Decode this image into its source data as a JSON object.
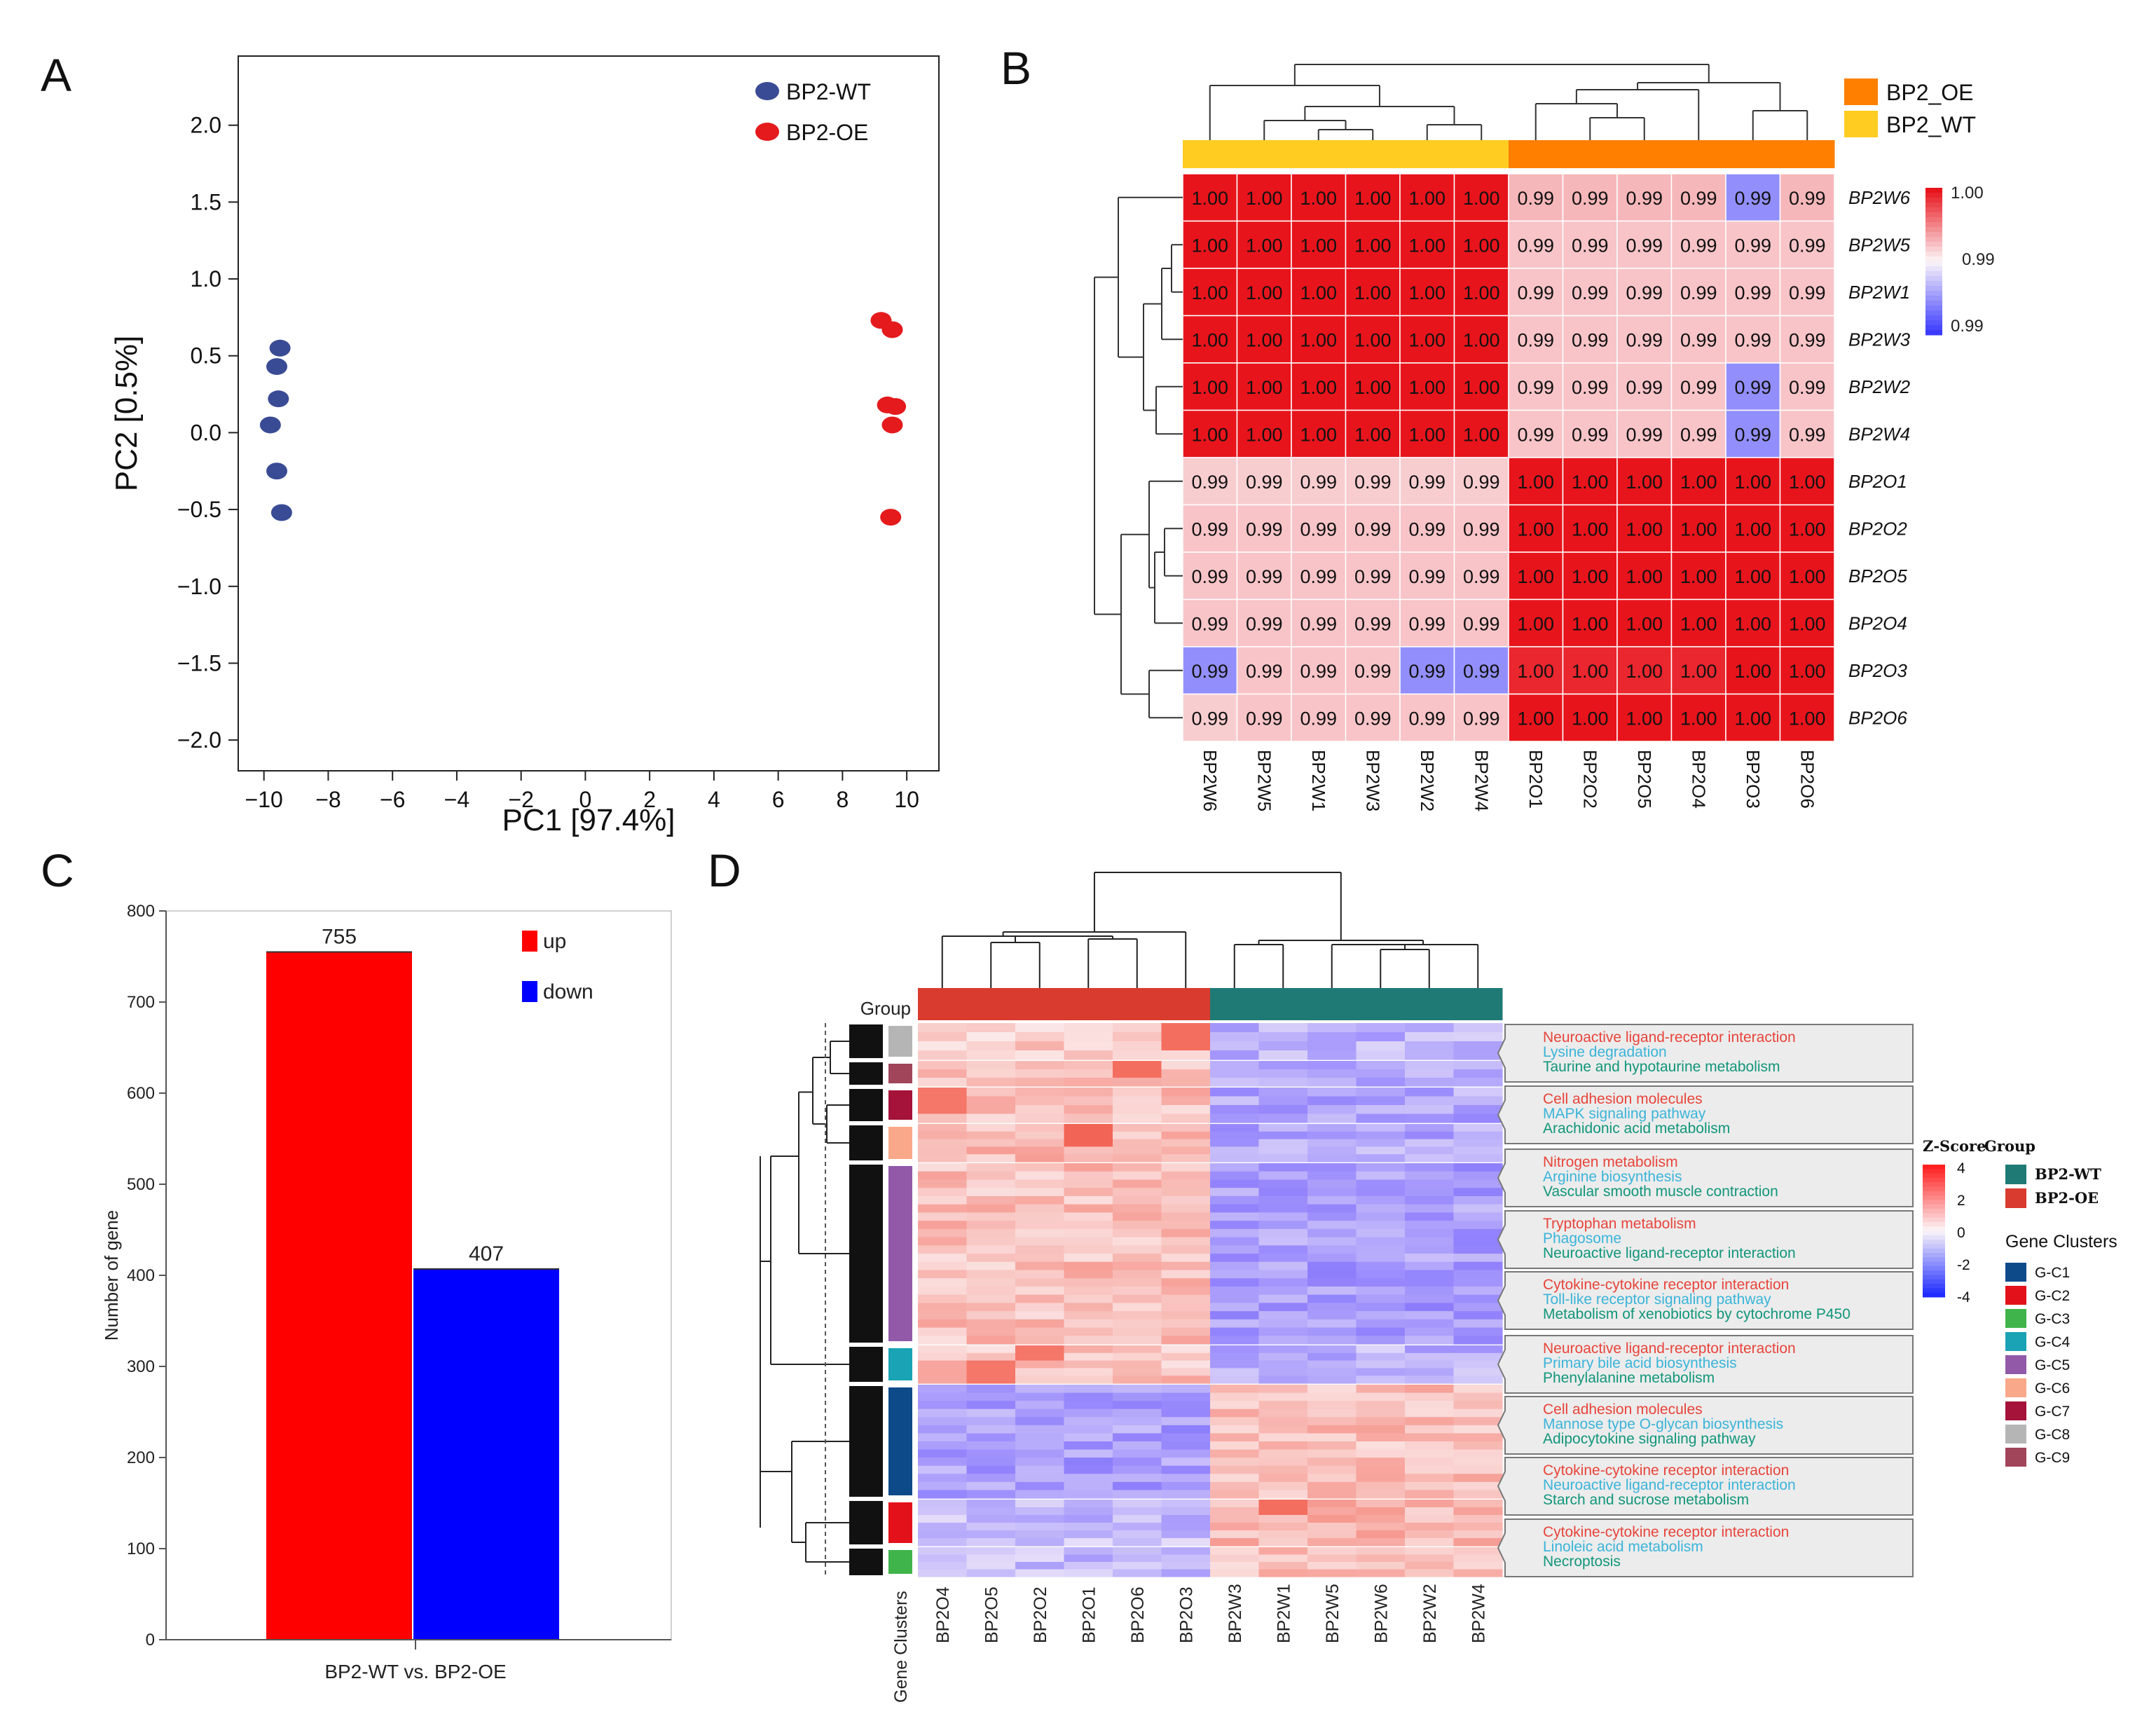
{
  "panels": {
    "A": "A",
    "B": "B",
    "C": "C",
    "D": "D"
  },
  "colors": {
    "wt_point": "#3a4b95",
    "oe_point": "#e41a1c",
    "bar_up": "#ff0000",
    "bar_down": "#0000ff",
    "heat_high": "#e8141c",
    "heat_low": "#3b3bff",
    "oe_bar": "#ff7f00",
    "wt_bar": "#ffcc22",
    "d_oe": "#d93b2f",
    "d_wt": "#1f7a75"
  },
  "chart_data": [
    {
      "panel": "A",
      "type": "scatter",
      "xlabel": "PC1 [97.4%]",
      "ylabel": "PC2 [0.5%]",
      "xlim": [
        -10.8,
        11
      ],
      "ylim": [
        -2.2,
        2.45
      ],
      "xticks": [
        -10,
        -8,
        -6,
        -4,
        -2,
        0,
        2,
        4,
        6,
        8,
        10
      ],
      "yticks": [
        -2.0,
        -1.5,
        -1.0,
        -0.5,
        0.0,
        0.5,
        1.0,
        1.5,
        2.0
      ],
      "legend_position": "top-right",
      "series": [
        {
          "name": "BP2-WT",
          "points": [
            [
              -9.5,
              0.55
            ],
            [
              -9.6,
              0.43
            ],
            [
              -9.55,
              0.22
            ],
            [
              -9.8,
              0.05
            ],
            [
              -9.6,
              -0.25
            ],
            [
              -9.45,
              -0.52
            ]
          ]
        },
        {
          "name": "BP2-OE",
          "points": [
            [
              9.2,
              0.73
            ],
            [
              9.55,
              0.67
            ],
            [
              9.4,
              0.18
            ],
            [
              9.65,
              0.17
            ],
            [
              9.55,
              0.05
            ],
            [
              9.5,
              -0.55
            ]
          ]
        }
      ]
    },
    {
      "panel": "B",
      "type": "heatmap",
      "rows": [
        "BP2W6",
        "BP2W5",
        "BP2W1",
        "BP2W3",
        "BP2W2",
        "BP2W4",
        "BP2O1",
        "BP2O2",
        "BP2O5",
        "BP2O4",
        "BP2O3",
        "BP2O6"
      ],
      "columns": [
        "BP2W6",
        "BP2W5",
        "BP2W1",
        "BP2W3",
        "BP2W2",
        "BP2W4",
        "BP2O1",
        "BP2O2",
        "BP2O5",
        "BP2O4",
        "BP2O3",
        "BP2O6"
      ],
      "column_groups": [
        "BP2_WT",
        "BP2_WT",
        "BP2_WT",
        "BP2_WT",
        "BP2_WT",
        "BP2_WT",
        "BP2_OE",
        "BP2_OE",
        "BP2_OE",
        "BP2_OE",
        "BP2_OE",
        "BP2_OE"
      ],
      "values": [
        [
          "1.00",
          "1.00",
          "1.00",
          "1.00",
          "1.00",
          "1.00",
          "0.99",
          "0.99",
          "0.99",
          "0.99",
          "0.99",
          "0.99"
        ],
        [
          "1.00",
          "1.00",
          "1.00",
          "1.00",
          "1.00",
          "1.00",
          "0.99",
          "0.99",
          "0.99",
          "0.99",
          "0.99",
          "0.99"
        ],
        [
          "1.00",
          "1.00",
          "1.00",
          "1.00",
          "1.00",
          "1.00",
          "0.99",
          "0.99",
          "0.99",
          "0.99",
          "0.99",
          "0.99"
        ],
        [
          "1.00",
          "1.00",
          "1.00",
          "1.00",
          "1.00",
          "1.00",
          "0.99",
          "0.99",
          "0.99",
          "0.99",
          "0.99",
          "0.99"
        ],
        [
          "1.00",
          "1.00",
          "1.00",
          "1.00",
          "1.00",
          "1.00",
          "0.99",
          "0.99",
          "0.99",
          "0.99",
          "0.99",
          "0.99"
        ],
        [
          "1.00",
          "1.00",
          "1.00",
          "1.00",
          "1.00",
          "1.00",
          "0.99",
          "0.99",
          "0.99",
          "0.99",
          "0.99",
          "0.99"
        ],
        [
          "0.99",
          "0.99",
          "0.99",
          "0.99",
          "0.99",
          "0.99",
          "1.00",
          "1.00",
          "1.00",
          "1.00",
          "1.00",
          "1.00"
        ],
        [
          "0.99",
          "0.99",
          "0.99",
          "0.99",
          "0.99",
          "0.99",
          "1.00",
          "1.00",
          "1.00",
          "1.00",
          "1.00",
          "1.00"
        ],
        [
          "0.99",
          "0.99",
          "0.99",
          "0.99",
          "0.99",
          "0.99",
          "1.00",
          "1.00",
          "1.00",
          "1.00",
          "1.00",
          "1.00"
        ],
        [
          "0.99",
          "0.99",
          "0.99",
          "0.99",
          "0.99",
          "0.99",
          "1.00",
          "1.00",
          "1.00",
          "1.00",
          "1.00",
          "1.00"
        ],
        [
          "0.99",
          "0.99",
          "0.99",
          "0.99",
          "0.99",
          "0.99",
          "1.00",
          "1.00",
          "1.00",
          "1.00",
          "1.00",
          "1.00"
        ],
        [
          "0.99",
          "0.99",
          "0.99",
          "0.99",
          "0.99",
          "0.99",
          "1.00",
          "1.00",
          "1.00",
          "1.00",
          "1.00",
          "1.00"
        ]
      ],
      "intensity": [
        [
          1,
          1,
          1,
          1,
          1,
          1,
          0.28,
          0.28,
          0.28,
          0.28,
          -0.55,
          0.28
        ],
        [
          1,
          1,
          1,
          1,
          1,
          1,
          0.22,
          0.22,
          0.22,
          0.22,
          0.22,
          0.22
        ],
        [
          1,
          1,
          1,
          1,
          1,
          1,
          0.22,
          0.22,
          0.22,
          0.22,
          0.22,
          0.22
        ],
        [
          1,
          1,
          1,
          1,
          1,
          1,
          0.22,
          0.22,
          0.22,
          0.22,
          0.22,
          0.22
        ],
        [
          1,
          1,
          1,
          1,
          1,
          1,
          0.22,
          0.22,
          0.22,
          0.22,
          -0.55,
          0.22
        ],
        [
          1,
          1,
          1,
          1,
          1,
          1,
          0.22,
          0.22,
          0.22,
          0.22,
          -0.55,
          0.22
        ],
        [
          0.18,
          0.18,
          0.18,
          0.18,
          0.18,
          0.18,
          1,
          1,
          1,
          1,
          1,
          1
        ],
        [
          0.22,
          0.22,
          0.22,
          0.22,
          0.22,
          0.22,
          1,
          1,
          1,
          1,
          1,
          1
        ],
        [
          0.22,
          0.22,
          0.22,
          0.22,
          0.22,
          0.22,
          1,
          1,
          1,
          1,
          1,
          1
        ],
        [
          0.22,
          0.22,
          0.22,
          0.22,
          0.22,
          0.22,
          1,
          1,
          1,
          1,
          1,
          1
        ],
        [
          -0.55,
          0.22,
          0.22,
          0.22,
          -0.55,
          -0.55,
          0.92,
          0.92,
          0.92,
          0.92,
          1,
          1
        ],
        [
          0.18,
          0.22,
          0.22,
          0.22,
          0.22,
          0.22,
          1,
          1,
          1,
          1,
          1,
          1
        ]
      ],
      "colorbar_ticks": [
        "1.00",
        "0.99",
        "0.99"
      ],
      "legend": [
        "BP2_OE",
        "BP2_WT"
      ]
    },
    {
      "panel": "C",
      "type": "bar",
      "categories": [
        "BP2-WT vs. BP2-OE"
      ],
      "series": [
        {
          "name": "up",
          "values": [
            755
          ]
        },
        {
          "name": "down",
          "values": [
            407
          ]
        }
      ],
      "ylabel": "Number of gene",
      "ylim": [
        0,
        800
      ],
      "yticks": [
        0,
        100,
        200,
        300,
        400,
        500,
        600,
        700,
        800
      ],
      "legend_position": "top-right"
    },
    {
      "panel": "D",
      "type": "heatmap",
      "group_label": "Group",
      "columns": [
        "BP2O4",
        "BP2O5",
        "BP2O2",
        "BP2O1",
        "BP2O6",
        "BP2O3",
        "BP2W3",
        "BP2W1",
        "BP2W5",
        "BP2W6",
        "BP2W2",
        "BP2W4"
      ],
      "row_axis_label": "Gene Clusters",
      "colorbar_title": "Z-Score",
      "colorbar_ticks": [
        "4",
        "2",
        "0",
        "-2",
        "-4"
      ],
      "group_legend_title": "Group",
      "group_legend": [
        "BP2-WT",
        "BP2-OE"
      ],
      "cluster_legend_title": "Gene Clusters",
      "clusters": [
        "G-C1",
        "G-C2",
        "G-C3",
        "G-C4",
        "G-C5",
        "G-C6",
        "G-C7",
        "G-C8",
        "G-C9"
      ],
      "cluster_colors": {
        "G-C1": "#0d4a8a",
        "G-C2": "#e3121a",
        "G-C3": "#3fb44a",
        "G-C4": "#1aa3b5",
        "G-C5": "#9159a8",
        "G-C6": "#f9a98a",
        "G-C7": "#a5123a",
        "G-C8": "#b5b5b5",
        "G-C9": "#a0455a"
      },
      "cluster_order": [
        "G-C8",
        "G-C9",
        "G-C7",
        "G-C6",
        "G-C5",
        "G-C4",
        "G-C1",
        "G-C2",
        "G-C3"
      ],
      "pathway_boxes": [
        [
          "Neuroactive ligand-receptor interaction",
          "Lysine degradation",
          "Taurine and hypotaurine metabolism"
        ],
        [
          "Cell adhesion molecules",
          "MAPK signaling pathway",
          "Arachidonic acid metabolism"
        ],
        [
          "Nitrogen metabolism",
          "Arginine biosynthesis",
          "Vascular smooth muscle contraction"
        ],
        [
          "Tryptophan metabolism",
          "Phagosome",
          "Neuroactive ligand-receptor interaction"
        ],
        [
          "Cytokine-cytokine receptor interaction",
          "Toll-like receptor signaling pathway",
          "Metabolism of xenobiotics by cytochrome P450"
        ],
        [
          "Neuroactive ligand-receptor interaction",
          "Primary bile acid biosynthesis",
          "Phenylalanine metabolism"
        ],
        [
          "Cell adhesion molecules",
          "Mannose type O-glycan biosynthesis",
          "Adipocytokine signaling pathway"
        ],
        [
          "Cytokine-cytokine receptor interaction",
          "Neuroactive ligand-receptor interaction",
          "Starch and sucrose metabolism"
        ],
        [
          "Cytokine-cytokine receptor interaction",
          "Linoleic acid metabolism",
          "Necroptosis"
        ]
      ],
      "pathway_colors": [
        "#e8443a",
        "#3ab4d9",
        "#11967a"
      ]
    }
  ]
}
